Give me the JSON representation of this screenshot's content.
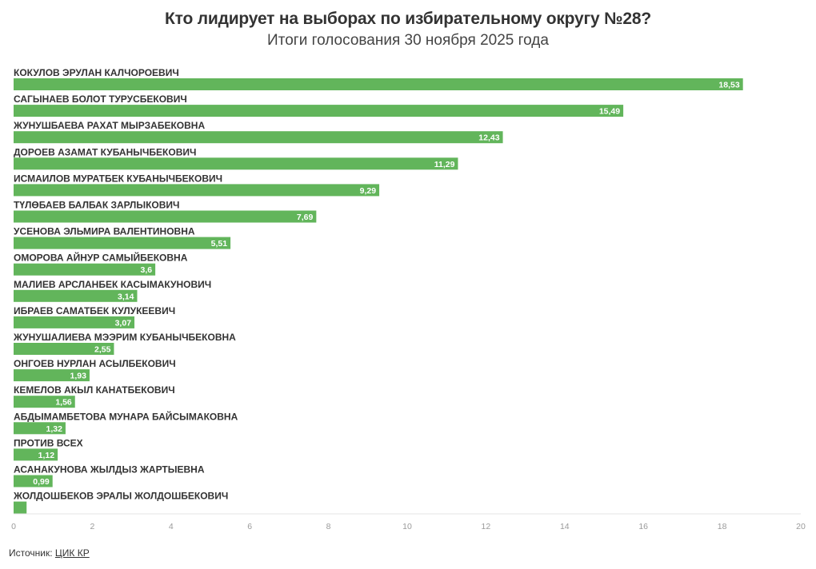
{
  "chart_data": {
    "type": "bar",
    "orientation": "horizontal",
    "title": "Кто лидирует на выборах по избирательному округу №28?",
    "subtitle": "Итоги голосования 30 ноября 2025 года",
    "categories": [
      "КОКУЛОВ ЭРУЛАН КАЛЧОРОЕВИЧ",
      "САГЫНАЕВ БОЛОТ ТУРУСБЕКОВИЧ",
      "ЖУНУШБАЕВА РАХАТ МЫРЗАБЕКОВНА",
      "ДОРОЕВ АЗАМАТ КУБАНЫЧБЕКОВИЧ",
      "ИСМАИЛОВ МУРАТБЕК КУБАНЫЧБЕКОВИЧ",
      "ТҮЛӨБАЕВ БАЛБАК ЗАРЛЫКОВИЧ",
      "УСЕНОВА ЭЛЬМИРА ВАЛЕНТИНОВНА",
      "ОМОРОВА АЙНУР САМЫЙБЕКОВНА",
      "МАЛИЕВ АРСЛАНБЕК КАСЫМАКУНОВИЧ",
      "ИБРАЕВ САМАТБЕК КУЛУКЕЕВИЧ",
      "ЖУНУШАЛИЕВА МЭЭРИМ КУБАНЫЧБЕКОВНА",
      "ОНГОЕВ НУРЛАН АСЫЛБЕКОВИЧ",
      "КЕМЕЛОВ АКЫЛ КАНАТБЕКОВИЧ",
      "АБДЫМАМБЕТОВА МУНАРА БАЙСЫМАКОВНА",
      "ПРОТИВ ВСЕХ",
      "АСАНАКУНОВА ЖЫЛДЫЗ ЖАРТЫЕВНА",
      "ЖОЛДОШБЕКОВ ЭРАЛЫ ЖОЛДОШБЕКОВИЧ"
    ],
    "values": [
      18.53,
      15.49,
      12.43,
      11.29,
      9.29,
      7.69,
      5.51,
      3.6,
      3.14,
      3.07,
      2.55,
      1.93,
      1.56,
      1.32,
      1.12,
      0.99,
      0.33
    ],
    "value_labels": [
      "18,53",
      "15,49",
      "12,43",
      "11,29",
      "9,29",
      "7,69",
      "5,51",
      "3,6",
      "3,14",
      "3,07",
      "2,55",
      "1,93",
      "1,56",
      "1,32",
      "1,12",
      "0,99",
      ""
    ],
    "xlim": [
      0,
      20
    ],
    "xticks": [
      "0",
      "2",
      "4",
      "6",
      "8",
      "10",
      "12",
      "14",
      "16",
      "18",
      "20"
    ],
    "bar_color": "#62b55b",
    "grid": false
  },
  "source": {
    "prefix": "Источник: ",
    "link_text": "ЦИК КР"
  }
}
